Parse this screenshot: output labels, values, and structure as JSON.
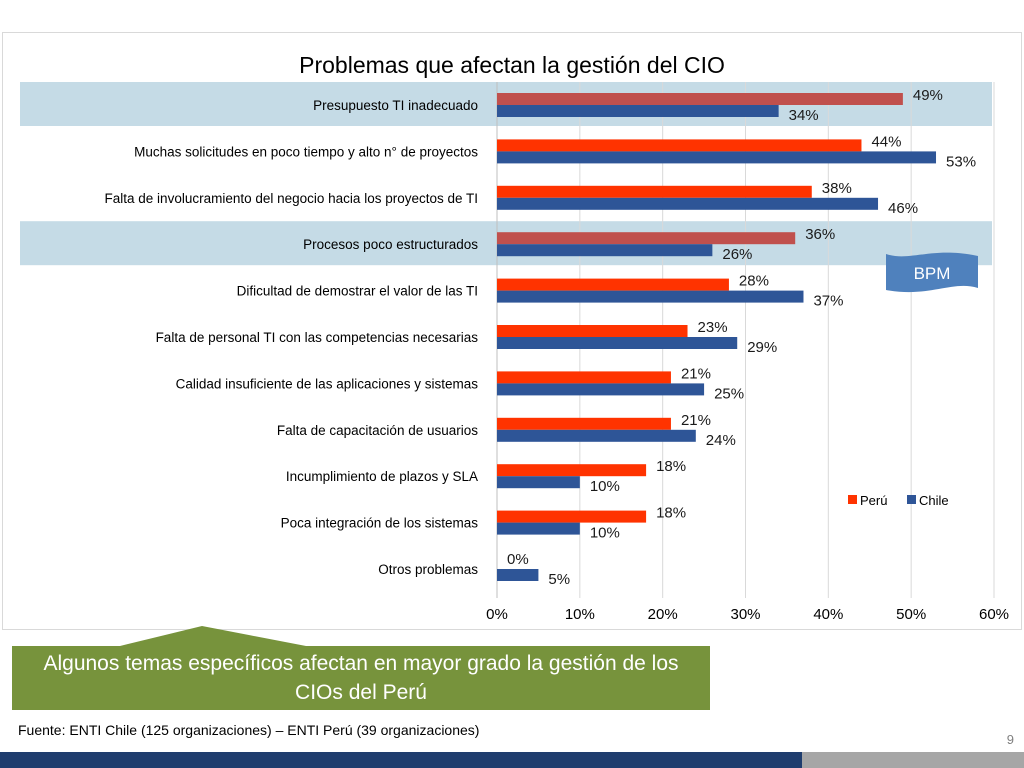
{
  "chart_data": {
    "type": "bar",
    "orientation": "horizontal",
    "title": "Problemas que afectan la gestión del CIO",
    "categories": [
      "Presupuesto  TI inadecuado",
      "Muchas solicitudes  en poco tiempo  y alto n° de proyectos",
      "Falta de involucramiento  del negocio hacia los proyectos de TI",
      "Procesos  poco  estructurados",
      "Dificultad  de demostrar el valor de las TI",
      "Falta de personal TI con las competencias  necesarias",
      "Calidad insuficiente  de las aplicaciones  y sistemas",
      "Falta de capacitación  de usuarios",
      "Incumplimiento  de plazos y SLA",
      "Poca integración  de los sistemas",
      "Otros problemas"
    ],
    "series": [
      {
        "name": "Perú",
        "color": "#ff3300",
        "values": [
          49,
          44,
          38,
          36,
          28,
          23,
          21,
          21,
          18,
          18,
          0
        ],
        "labels": [
          "49%",
          "44%",
          "38%",
          "36%",
          "28%",
          "23%",
          "21%",
          "21%",
          "18%",
          "18%",
          "0%"
        ]
      },
      {
        "name": "Chile",
        "color": "#2e5597",
        "values": [
          34,
          53,
          46,
          26,
          37,
          29,
          25,
          24,
          10,
          10,
          5
        ],
        "labels": [
          "34%",
          "53%",
          "46%",
          "26%",
          "37%",
          "29%",
          "25%",
          "24%",
          "10%",
          "10%",
          "5%"
        ]
      }
    ],
    "xlim": [
      0,
      60
    ],
    "xticks": [
      "0%",
      "10%",
      "20%",
      "30%",
      "40%",
      "50%",
      "60%"
    ],
    "grid": true,
    "legend": "right",
    "highlighted_categories": [
      0,
      3
    ],
    "highlight_color": "#c5dbe6",
    "highlighted_peru_color": "#c0504d"
  },
  "badge": {
    "label": "BPM",
    "color": "#4f81bd"
  },
  "callout": {
    "text": "Algunos temas específicos afectan en mayor grado la gestión de los CIOs del Perú"
  },
  "source": "Fuente: ENTI Chile (125 organizaciones) – ENTI Perú (39 organizaciones)",
  "page_number": "9"
}
